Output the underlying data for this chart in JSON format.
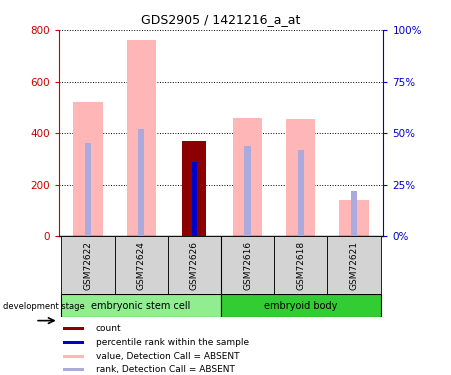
{
  "title": "GDS2905 / 1421216_a_at",
  "samples": [
    "GSM72622",
    "GSM72624",
    "GSM72626",
    "GSM72616",
    "GSM72618",
    "GSM72621"
  ],
  "value_absent": [
    520,
    760,
    0,
    460,
    455,
    140
  ],
  "rank_absent_pct": [
    45,
    52,
    0,
    44,
    42,
    22
  ],
  "count_value": [
    0,
    0,
    370,
    0,
    0,
    0
  ],
  "count_rank_pct": [
    0,
    0,
    36,
    0,
    0,
    0
  ],
  "ylim_left": [
    0,
    800
  ],
  "ylim_right": [
    0,
    100
  ],
  "yticks_left": [
    0,
    200,
    400,
    600,
    800
  ],
  "yticks_right": [
    0,
    25,
    50,
    75,
    100
  ],
  "ytick_labels_left": [
    "0",
    "200",
    "400",
    "600",
    "800"
  ],
  "ytick_labels_right": [
    "0%",
    "25%",
    "50%",
    "75%",
    "100%"
  ],
  "color_count": "#8B0000",
  "color_rank_present": "#0000CD",
  "color_value_absent": "#FFB6B6",
  "color_rank_absent": "#AAAADD",
  "axis_color_left": "#CC0000",
  "axis_color_right": "#0000CC",
  "tick_label_size": 7.5
}
